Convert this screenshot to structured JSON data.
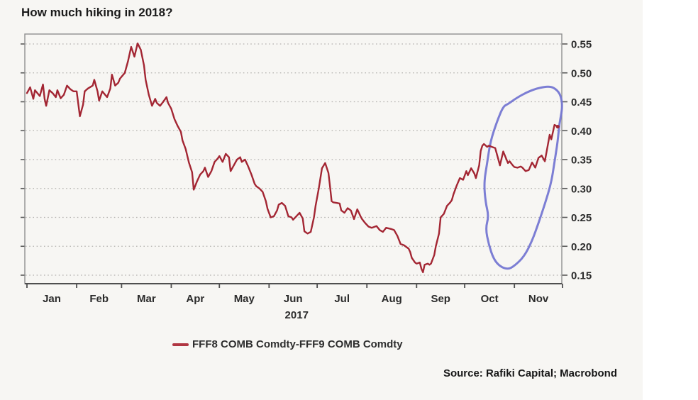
{
  "title": "How much hiking in 2018?",
  "legend": {
    "label": "FFF8 COMB Comdty-FFF9 COMB Comdty",
    "marker_color": "#b03642"
  },
  "source": "Source: Rafiki Capital; Macrobond",
  "chart_data": {
    "type": "line",
    "title": "How much hiking in 2018?",
    "grid": "horizontal-dotted",
    "legend_position": "bottom-center",
    "x_axis": {
      "year_label": "2017",
      "month_labels": [
        "Jan",
        "Feb",
        "Mar",
        "Apr",
        "May",
        "Jun",
        "Jul",
        "Aug",
        "Sep",
        "Oct",
        "Nov"
      ],
      "month_start_days": [
        0,
        31,
        59,
        90,
        120,
        151,
        181,
        212,
        243,
        273,
        304,
        334
      ],
      "xlim_days": [
        0,
        334
      ]
    },
    "y_axis": {
      "side": "right",
      "tick_labels": [
        "0.55",
        "0.50",
        "0.45",
        "0.40",
        "0.35",
        "0.30",
        "0.25",
        "0.20",
        "0.15"
      ],
      "ylim": [
        0.135,
        0.567
      ]
    },
    "series": [
      {
        "name": "FFF8 COMB Comdty-FFF9 COMB Comdty",
        "color": "#a32633",
        "points": [
          [
            0,
            0.465
          ],
          [
            2,
            0.475
          ],
          [
            4,
            0.455
          ],
          [
            5,
            0.47
          ],
          [
            8,
            0.46
          ],
          [
            10,
            0.48
          ],
          [
            11,
            0.455
          ],
          [
            12,
            0.443
          ],
          [
            14,
            0.47
          ],
          [
            16,
            0.465
          ],
          [
            18,
            0.458
          ],
          [
            19,
            0.47
          ],
          [
            21,
            0.456
          ],
          [
            23,
            0.462
          ],
          [
            25,
            0.478
          ],
          [
            27,
            0.472
          ],
          [
            29,
            0.468
          ],
          [
            31,
            0.468
          ],
          [
            33,
            0.425
          ],
          [
            35,
            0.445
          ],
          [
            36,
            0.468
          ],
          [
            38,
            0.473
          ],
          [
            41,
            0.478
          ],
          [
            42,
            0.488
          ],
          [
            44,
            0.468
          ],
          [
            45,
            0.452
          ],
          [
            47,
            0.468
          ],
          [
            50,
            0.458
          ],
          [
            52,
            0.473
          ],
          [
            53,
            0.497
          ],
          [
            55,
            0.478
          ],
          [
            57,
            0.483
          ],
          [
            58,
            0.49
          ],
          [
            61,
            0.5
          ],
          [
            63,
            0.52
          ],
          [
            65,
            0.545
          ],
          [
            67,
            0.528
          ],
          [
            69,
            0.551
          ],
          [
            71,
            0.54
          ],
          [
            73,
            0.513
          ],
          [
            74,
            0.488
          ],
          [
            76,
            0.462
          ],
          [
            78,
            0.443
          ],
          [
            80,
            0.455
          ],
          [
            81,
            0.448
          ],
          [
            83,
            0.443
          ],
          [
            85,
            0.45
          ],
          [
            87,
            0.458
          ],
          [
            88,
            0.448
          ],
          [
            90,
            0.438
          ],
          [
            92,
            0.42
          ],
          [
            94,
            0.408
          ],
          [
            96,
            0.398
          ],
          [
            97,
            0.383
          ],
          [
            99,
            0.368
          ],
          [
            101,
            0.345
          ],
          [
            103,
            0.328
          ],
          [
            104,
            0.298
          ],
          [
            106,
            0.312
          ],
          [
            108,
            0.324
          ],
          [
            110,
            0.33
          ],
          [
            111,
            0.336
          ],
          [
            113,
            0.32
          ],
          [
            115,
            0.33
          ],
          [
            117,
            0.346
          ],
          [
            119,
            0.352
          ],
          [
            120,
            0.356
          ],
          [
            122,
            0.346
          ],
          [
            124,
            0.36
          ],
          [
            126,
            0.354
          ],
          [
            127,
            0.33
          ],
          [
            129,
            0.34
          ],
          [
            131,
            0.35
          ],
          [
            133,
            0.354
          ],
          [
            134,
            0.346
          ],
          [
            136,
            0.35
          ],
          [
            138,
            0.338
          ],
          [
            140,
            0.324
          ],
          [
            142,
            0.308
          ],
          [
            143,
            0.304
          ],
          [
            145,
            0.3
          ],
          [
            147,
            0.294
          ],
          [
            149,
            0.278
          ],
          [
            150,
            0.265
          ],
          [
            152,
            0.25
          ],
          [
            154,
            0.252
          ],
          [
            156,
            0.262
          ],
          [
            157,
            0.272
          ],
          [
            159,
            0.275
          ],
          [
            161,
            0.27
          ],
          [
            163,
            0.252
          ],
          [
            165,
            0.25
          ],
          [
            166,
            0.246
          ],
          [
            168,
            0.252
          ],
          [
            170,
            0.258
          ],
          [
            172,
            0.248
          ],
          [
            173,
            0.226
          ],
          [
            175,
            0.222
          ],
          [
            177,
            0.225
          ],
          [
            179,
            0.25
          ],
          [
            180,
            0.27
          ],
          [
            182,
            0.3
          ],
          [
            184,
            0.335
          ],
          [
            186,
            0.344
          ],
          [
            188,
            0.327
          ],
          [
            189,
            0.304
          ],
          [
            190,
            0.278
          ],
          [
            191,
            0.276
          ],
          [
            193,
            0.275
          ],
          [
            195,
            0.274
          ],
          [
            196,
            0.262
          ],
          [
            198,
            0.258
          ],
          [
            200,
            0.266
          ],
          [
            202,
            0.262
          ],
          [
            204,
            0.247
          ],
          [
            206,
            0.264
          ],
          [
            208,
            0.252
          ],
          [
            209,
            0.247
          ],
          [
            211,
            0.24
          ],
          [
            213,
            0.234
          ],
          [
            215,
            0.232
          ],
          [
            218,
            0.235
          ],
          [
            220,
            0.228
          ],
          [
            222,
            0.225
          ],
          [
            224,
            0.232
          ],
          [
            227,
            0.23
          ],
          [
            229,
            0.228
          ],
          [
            231,
            0.218
          ],
          [
            233,
            0.204
          ],
          [
            235,
            0.202
          ],
          [
            238,
            0.196
          ],
          [
            239,
            0.19
          ],
          [
            240,
            0.18
          ],
          [
            242,
            0.172
          ],
          [
            243,
            0.17
          ],
          [
            245,
            0.172
          ],
          [
            246,
            0.161
          ],
          [
            247,
            0.155
          ],
          [
            248,
            0.168
          ],
          [
            250,
            0.17
          ],
          [
            251,
            0.168
          ],
          [
            252,
            0.17
          ],
          [
            254,
            0.185
          ],
          [
            255,
            0.2
          ],
          [
            257,
            0.222
          ],
          [
            258,
            0.25
          ],
          [
            260,
            0.256
          ],
          [
            262,
            0.27
          ],
          [
            264,
            0.276
          ],
          [
            265,
            0.28
          ],
          [
            266,
            0.29
          ],
          [
            268,
            0.305
          ],
          [
            270,
            0.318
          ],
          [
            272,
            0.315
          ],
          [
            274,
            0.33
          ],
          [
            275,
            0.323
          ],
          [
            277,
            0.335
          ],
          [
            279,
            0.326
          ],
          [
            280,
            0.318
          ],
          [
            282,
            0.34
          ],
          [
            283,
            0.365
          ],
          [
            284,
            0.374
          ],
          [
            285,
            0.377
          ],
          [
            287,
            0.372
          ],
          [
            288,
            0.374
          ],
          [
            290,
            0.372
          ],
          [
            292,
            0.37
          ],
          [
            294,
            0.35
          ],
          [
            295,
            0.34
          ],
          [
            297,
            0.364
          ],
          [
            300,
            0.344
          ],
          [
            301,
            0.347
          ],
          [
            303,
            0.34
          ],
          [
            304,
            0.337
          ],
          [
            306,
            0.336
          ],
          [
            308,
            0.338
          ],
          [
            309,
            0.336
          ],
          [
            311,
            0.33
          ],
          [
            313,
            0.332
          ],
          [
            315,
            0.345
          ],
          [
            317,
            0.336
          ],
          [
            319,
            0.353
          ],
          [
            321,
            0.357
          ],
          [
            323,
            0.347
          ],
          [
            325,
            0.378
          ],
          [
            326,
            0.393
          ],
          [
            327,
            0.385
          ],
          [
            329,
            0.41
          ],
          [
            331,
            0.407
          ]
        ]
      }
    ],
    "annotation": {
      "type": "hand-drawn-ellipse",
      "color": "#7577d2",
      "region": "Oct-Nov rate-hike pricing",
      "outline": [
        [
          297,
          0.442
        ],
        [
          293,
          0.415
        ],
        [
          289,
          0.381
        ],
        [
          287,
          0.344
        ],
        [
          285,
          0.31
        ],
        [
          286,
          0.276
        ],
        [
          288,
          0.252
        ],
        [
          286,
          0.231
        ],
        [
          288,
          0.203
        ],
        [
          291,
          0.178
        ],
        [
          295,
          0.165
        ],
        [
          300,
          0.16
        ],
        [
          304,
          0.166
        ],
        [
          310,
          0.182
        ],
        [
          315,
          0.209
        ],
        [
          319,
          0.24
        ],
        [
          323,
          0.273
        ],
        [
          327,
          0.31
        ],
        [
          329,
          0.346
        ],
        [
          331,
          0.381
        ],
        [
          332,
          0.412
        ],
        [
          334,
          0.44
        ],
        [
          333,
          0.461
        ],
        [
          330,
          0.472
        ],
        [
          326,
          0.477
        ],
        [
          319,
          0.474
        ],
        [
          312,
          0.467
        ],
        [
          305,
          0.456
        ],
        [
          300,
          0.446
        ]
      ]
    }
  }
}
